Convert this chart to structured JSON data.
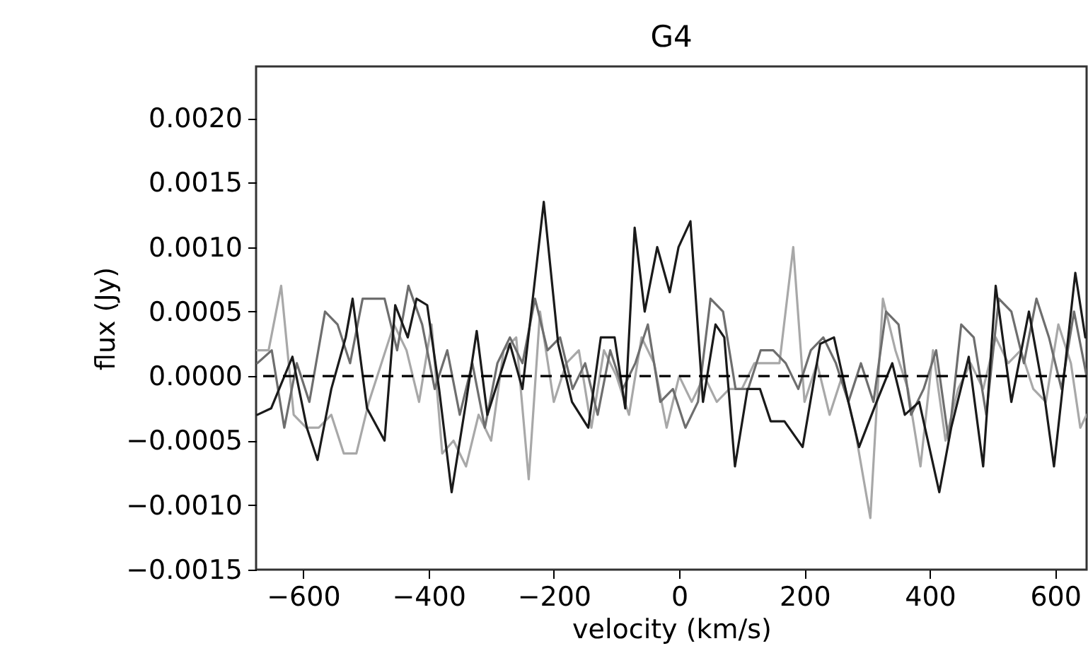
{
  "chart_data": {
    "type": "line",
    "title": "G4",
    "xlabel": "velocity (km/s)",
    "ylabel": "flux (Jy)",
    "xlim": [
      -675,
      650
    ],
    "xticks": [
      {
        "value": -600,
        "label": "−600"
      },
      {
        "value": -400,
        "label": "−400"
      },
      {
        "value": -200,
        "label": "−200"
      },
      0,
      200,
      400,
      600
    ],
    "ylim": [
      -0.0015,
      0.0024
    ],
    "yticks": [
      {
        "value": -0.0015,
        "label": "−0.0015"
      },
      {
        "value": -0.001,
        "label": "−0.0010"
      },
      {
        "value": -0.0005,
        "label": "−0.0005"
      },
      {
        "value": 0,
        "label": "0.0000"
      },
      {
        "value": 0.0005,
        "label": "0.0005"
      },
      {
        "value": 0.001,
        "label": "0.0010"
      },
      {
        "value": 0.0015,
        "label": "0.0015"
      },
      {
        "value": 0.002,
        "label": "0.0020"
      }
    ],
    "grid": false,
    "line_style": "solid",
    "marker": "none",
    "ref_lines": [
      {
        "axis": "y",
        "value": 0,
        "color": "#000000",
        "line_style": "dashed"
      }
    ],
    "series": [
      {
        "color": "#a8a8a8",
        "x": [
          -673,
          -655,
          -635,
          -615,
          -595,
          -575,
          -555,
          -535,
          -515,
          -495,
          -475,
          -455,
          -435,
          -415,
          -395,
          -378,
          -360,
          -340,
          -320,
          -300,
          -280,
          -260,
          -240,
          -222,
          -200,
          -180,
          -160,
          -140,
          -120,
          -100,
          -80,
          -60,
          -40,
          -20,
          0,
          20,
          40,
          60,
          80,
          100,
          120,
          140,
          160,
          182,
          200,
          220,
          240,
          260,
          280,
          305,
          325,
          345,
          365,
          385,
          405,
          425,
          445,
          465,
          485,
          505,
          525,
          545,
          565,
          585,
          605,
          625,
          640,
          650
        ],
        "values": [
          0.0002,
          0.0002,
          0.0007,
          -0.0003,
          -0.0004,
          -0.0004,
          -0.0003,
          -0.0006,
          -0.0006,
          -0.0002,
          0.0001,
          0.0004,
          0.0002,
          -0.0002,
          0.0004,
          -0.0006,
          -0.0005,
          -0.0007,
          -0.0003,
          -0.0005,
          0.0002,
          0.0003,
          -0.0008,
          0.0005,
          -0.0002,
          0.0001,
          0.0002,
          -0.0004,
          0.0002,
          0.0,
          -0.0003,
          0.0003,
          0.0001,
          -0.0004,
          0.0,
          -0.0002,
          0.0,
          -0.0002,
          -0.0001,
          -0.0001,
          0.0001,
          0.0001,
          0.0001,
          0.001,
          -0.0002,
          0.0001,
          -0.0003,
          0.0,
          -0.0004,
          -0.0011,
          0.0006,
          0.0002,
          -0.0001,
          -0.0007,
          0.0002,
          -0.0005,
          -0.0001,
          0.0001,
          -0.0001,
          0.0003,
          0.0001,
          0.0002,
          -0.0001,
          -0.0002,
          0.0004,
          0.0001,
          -0.0004,
          -0.0003
        ]
      },
      {
        "color": "#6e6e6e",
        "x": [
          -673,
          -650,
          -630,
          -610,
          -590,
          -565,
          -545,
          -525,
          -505,
          -470,
          -450,
          -432,
          -410,
          -390,
          -370,
          -350,
          -330,
          -310,
          -290,
          -270,
          -250,
          -230,
          -210,
          -190,
          -170,
          -150,
          -130,
          -110,
          -90,
          -70,
          -50,
          -30,
          -10,
          10,
          30,
          50,
          70,
          90,
          110,
          130,
          150,
          170,
          190,
          210,
          230,
          250,
          270,
          290,
          310,
          330,
          350,
          370,
          390,
          410,
          430,
          450,
          470,
          490,
          510,
          530,
          550,
          570,
          590,
          610,
          630,
          650
        ],
        "values": [
          0.0001,
          0.0002,
          -0.0004,
          0.0001,
          -0.0002,
          0.0005,
          0.0004,
          0.0001,
          0.0006,
          0.0006,
          0.0002,
          0.0007,
          0.0004,
          -0.0001,
          0.0002,
          -0.0003,
          0.0001,
          -0.0004,
          0.0001,
          0.0003,
          0.0001,
          0.0006,
          0.0002,
          0.0003,
          -0.0001,
          0.0001,
          -0.0003,
          0.0002,
          -0.0001,
          0.0001,
          0.0004,
          -0.0002,
          -0.0001,
          -0.0004,
          -0.0002,
          0.0006,
          0.0005,
          -0.0001,
          -0.0001,
          0.0002,
          0.0002,
          0.0001,
          -0.0001,
          0.0002,
          0.0003,
          0.0001,
          -0.0002,
          0.0001,
          -0.0002,
          0.0005,
          0.0004,
          -0.0003,
          -0.0001,
          0.0002,
          -0.0005,
          0.0004,
          0.0003,
          -0.0003,
          0.0006,
          0.0005,
          0.0001,
          0.0006,
          0.0003,
          -0.0001,
          0.0005,
          0.0
        ]
      },
      {
        "color": "#1a1a1a",
        "x": [
          -673,
          -651,
          -617,
          -594,
          -577,
          -555,
          -532,
          -521,
          -498,
          -470,
          -453,
          -433,
          -419,
          -402,
          -383,
          -363,
          -340,
          -323,
          -306,
          -270,
          -250,
          -216,
          -193,
          -171,
          -145,
          -125,
          -103,
          -86,
          -71,
          -55,
          -35,
          -15,
          -1,
          18,
          38,
          58,
          72,
          89,
          109,
          129,
          146,
          168,
          197,
          225,
          247,
          270,
          287,
          315,
          340,
          360,
          383,
          415,
          434,
          462,
          485,
          505,
          530,
          558,
          584,
          598,
          632,
          648
        ],
        "values": [
          -0.0003,
          -0.00025,
          0.00015,
          -0.0004,
          -0.00065,
          -0.0001,
          0.0003,
          0.0006,
          -0.00025,
          -0.0005,
          0.00055,
          0.0003,
          0.0006,
          0.00055,
          -0.0001,
          -0.0009,
          -0.0002,
          0.00035,
          -0.0003,
          0.00025,
          -0.0001,
          0.00135,
          0.00025,
          -0.0002,
          -0.0004,
          0.0003,
          0.0003,
          -0.00025,
          0.00115,
          0.0005,
          0.001,
          0.00065,
          0.001,
          0.0012,
          -0.0002,
          0.0004,
          0.0003,
          -0.0007,
          -0.0001,
          -0.0001,
          -0.00035,
          -0.00035,
          -0.00055,
          0.00025,
          0.0003,
          -0.0002,
          -0.00055,
          -0.0002,
          0.0001,
          -0.0003,
          -0.0002,
          -0.0009,
          -0.0004,
          0.00015,
          -0.0007,
          0.0007,
          -0.0002,
          0.0005,
          -0.0002,
          -0.0007,
          0.0008,
          0.0003
        ]
      }
    ]
  }
}
